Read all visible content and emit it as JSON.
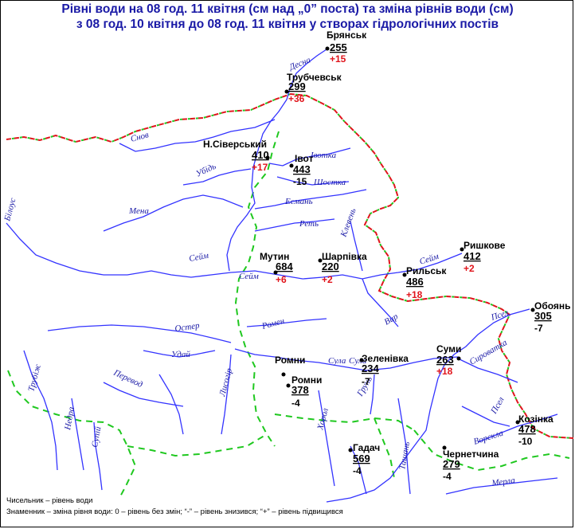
{
  "title": {
    "line1": "Рівні води на 08 год. 11 квітня (см над „0” поста) та зміна рівнів води (см)",
    "line2": "з 08 год. 10 квітня до 08 год. 11 квітня у створах гідрологічних постів"
  },
  "colors": {
    "title": "#1a1aa6",
    "river": "#3333ff",
    "border_red": "#e0141b",
    "border_green": "#1fc81f",
    "rise": "#e0141b",
    "fall": "#000000"
  },
  "stations": [
    {
      "name": "Брянськ",
      "level": "255",
      "change": "+15"
    },
    {
      "name": "Трубчевськ",
      "level": "299",
      "change": "+36"
    },
    {
      "name": "Н.Сіверський",
      "level": "410",
      "change": "+17"
    },
    {
      "name": "Івот",
      "level": "443",
      "change": "-15"
    },
    {
      "name": "Мутин",
      "level": "684",
      "change": "+6"
    },
    {
      "name": "Шарпівка",
      "level": "220",
      "change": "+2"
    },
    {
      "name": "Рильськ",
      "level": "486",
      "change": "+18"
    },
    {
      "name": "Ришкове",
      "level": "412",
      "change": "+2"
    },
    {
      "name": "Обоянь",
      "level": "305",
      "change": "-7"
    },
    {
      "name": "Суми",
      "level": "263",
      "change": "+18"
    },
    {
      "name": "Ромни",
      "level": "",
      "change": ""
    },
    {
      "name": "Ромни",
      "level": "378",
      "change": "-4"
    },
    {
      "name": "Зеленівка",
      "level": "234",
      "change": "-7"
    },
    {
      "name": "Козінка",
      "level": "478",
      "change": "-10"
    },
    {
      "name": "Гадач",
      "level": "569",
      "change": "-4"
    },
    {
      "name": "Чернетчина",
      "level": "279",
      "change": "-4"
    }
  ],
  "rivers": [
    "Десна",
    "Снов",
    "Івотка",
    "Убідь",
    "Шостка",
    "Есмань",
    "Мена",
    "Реть",
    "Білоус",
    "Сейм",
    "Клевень",
    "Сейм",
    "Сейм",
    "Вир",
    "Псел",
    "Ромен",
    "Остер",
    "Удай",
    "Сула",
    "Сула",
    "Сироватка",
    "Лисогір",
    "Перевод",
    "Грунь",
    "Трубіж",
    "Недра",
    "Супій",
    "Хорол",
    "Ташань",
    "Псел",
    "Ворскла",
    "Мерла"
  ],
  "legend": {
    "line1": "Чисельник – рівень води",
    "line2": "Знаменник – зміна рівня води: 0 –  рівень без змін;   “-” – рівень знизився;   “+” –  рівень підвищився"
  }
}
